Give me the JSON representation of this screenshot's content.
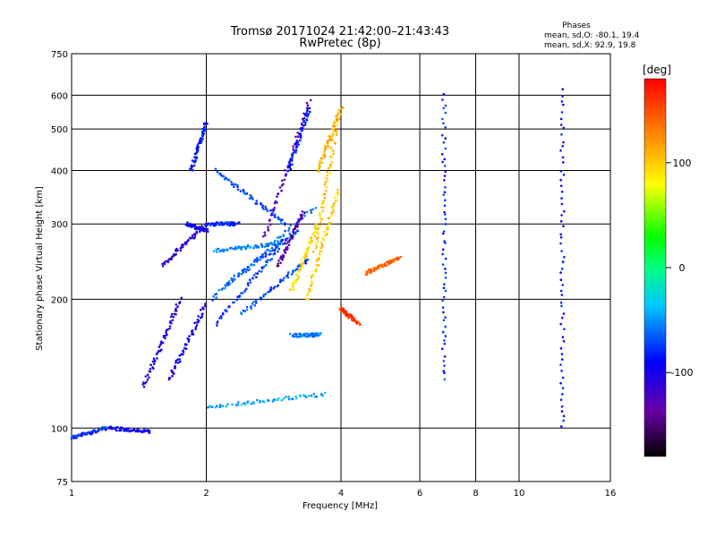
{
  "chart_data": {
    "type": "scatter",
    "title": "Tromsø 20171024 21:42:00–21:43:43",
    "subtitle": "RwPretec (8p)",
    "xlabel": "Frequency [MHz]",
    "ylabel": "Stationary phase Virtual Height [km]",
    "xscale": "log",
    "yscale": "log",
    "xlim": [
      1,
      16
    ],
    "ylim": [
      75,
      750
    ],
    "x_ticks": [
      1,
      2,
      4,
      6,
      8,
      10,
      16
    ],
    "x_tick_labels": [
      "1",
      "2",
      "4",
      "6",
      "8",
      "10",
      "16"
    ],
    "y_ticks": [
      75,
      100,
      200,
      300,
      400,
      500,
      600,
      750
    ],
    "y_tick_labels": [
      "75",
      "100",
      "200",
      "300",
      "400",
      "500",
      "600",
      "750"
    ],
    "grid": true,
    "phase_info": {
      "heading": "Phases",
      "line_o": "mean, sd,O: -80.1, 19.4",
      "line_x": "mean, sd,X:  92.9, 19.8"
    },
    "colorbar": {
      "label": "[deg]",
      "range": [
        -180,
        180
      ],
      "ticks": [
        100,
        0,
        -100
      ],
      "tick_labels": [
        "100",
        "0",
        "-100"
      ]
    },
    "traces": [
      {
        "x": [
          1.0,
          1.2
        ],
        "y": [
          95,
          100
        ],
        "phase": -80
      },
      {
        "x": [
          1.2,
          1.5
        ],
        "y": [
          100,
          98
        ],
        "phase": -95
      },
      {
        "x": [
          1.45,
          1.75
        ],
        "y": [
          125,
          200
        ],
        "phase": -105
      },
      {
        "x": [
          1.65,
          2.0
        ],
        "y": [
          130,
          195
        ],
        "phase": -100
      },
      {
        "x": [
          1.6,
          2.0
        ],
        "y": [
          240,
          300
        ],
        "phase": -110
      },
      {
        "x": [
          1.8,
          2.0
        ],
        "y": [
          300,
          290
        ],
        "phase": -95
      },
      {
        "x": [
          2.0,
          2.35
        ],
        "y": [
          300,
          300
        ],
        "phase": -80
      },
      {
        "x": [
          1.85,
          2.0
        ],
        "y": [
          400,
          520
        ],
        "phase": -85
      },
      {
        "x": [
          2.1,
          3.0
        ],
        "y": [
          400,
          300
        ],
        "phase": -70
      },
      {
        "x": [
          2.05,
          3.5
        ],
        "y": [
          200,
          330
        ],
        "phase": -60
      },
      {
        "x": [
          2.2,
          3.2
        ],
        "y": [
          215,
          290
        ],
        "phase": -65
      },
      {
        "x": [
          2.1,
          3.0
        ],
        "y": [
          175,
          275
        ],
        "phase": -75
      },
      {
        "x": [
          2.4,
          3.4
        ],
        "y": [
          185,
          250
        ],
        "phase": -70
      },
      {
        "x": [
          2.1,
          2.9
        ],
        "y": [
          260,
          270
        ],
        "phase": -55
      },
      {
        "x": [
          2.0,
          3.7
        ],
        "y": [
          112,
          120
        ],
        "phase": -45
      },
      {
        "x": [
          3.1,
          3.6
        ],
        "y": [
          165,
          165
        ],
        "phase": -55
      },
      {
        "x": [
          2.7,
          3.4
        ],
        "y": [
          280,
          580
        ],
        "phase": -130
      },
      {
        "x": [
          2.9,
          3.3
        ],
        "y": [
          240,
          320
        ],
        "phase": -140
      },
      {
        "x": [
          3.05,
          3.4
        ],
        "y": [
          400,
          560
        ],
        "phase": -85
      },
      {
        "x": [
          3.1,
          3.55
        ],
        "y": [
          210,
          300
        ],
        "phase": 95
      },
      {
        "x": [
          3.35,
          3.95
        ],
        "y": [
          200,
          360
        ],
        "phase": 100
      },
      {
        "x": [
          3.5,
          3.95
        ],
        "y": [
          260,
          540
        ],
        "phase": 105
      },
      {
        "x": [
          3.55,
          4.0
        ],
        "y": [
          400,
          560
        ],
        "phase": 110
      },
      {
        "x": [
          4.0,
          4.4
        ],
        "y": [
          190,
          175
        ],
        "phase": 160
      },
      {
        "x": [
          4.55,
          5.4
        ],
        "y": [
          230,
          250
        ],
        "phase": 140
      },
      {
        "x": [
          6.8,
          6.8
        ],
        "y": [
          130,
          600
        ],
        "phase": -80
      },
      {
        "x": [
          12.5,
          12.5
        ],
        "y": [
          100,
          620
        ],
        "phase": -90
      }
    ]
  }
}
